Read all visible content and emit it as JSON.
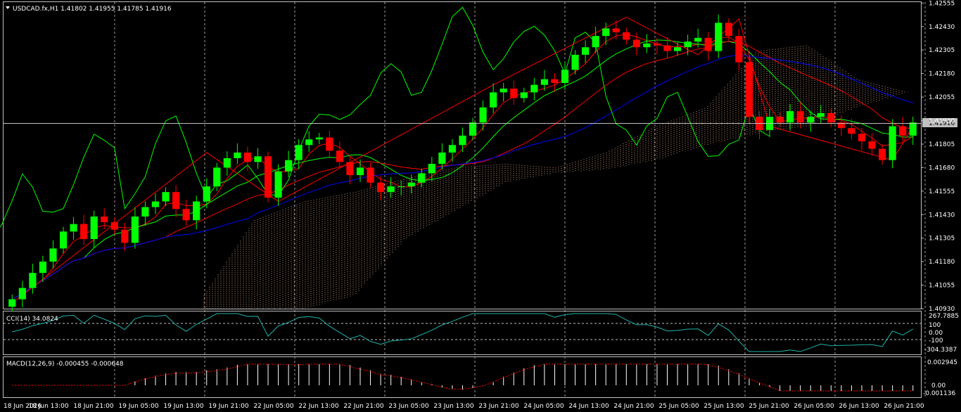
{
  "header": {
    "symbol_line": "USDCAD.fx,H1  1.41802 1.41955 1.41785 1.41916"
  },
  "price_axis": {
    "labels": [
      "1.42555",
      "1.42430",
      "1.42305",
      "1.42180",
      "1.42055",
      "1.41930",
      "1.41805",
      "1.41680",
      "1.41555",
      "1.41430",
      "1.41305",
      "1.41180",
      "1.41055",
      "1.40930"
    ],
    "current_price": "1.41916"
  },
  "time_axis": {
    "labels": [
      "18 Jun 2026",
      "18 Jun 13:00",
      "18 Jun 21:00",
      "19 Jun 05:00",
      "19 Jun 13:00",
      "19 Jun 21:00",
      "22 Jun 05:00",
      "22 Jun 13:00",
      "22 Jun 21:00",
      "23 Jun 05:00",
      "23 Jun 13:00",
      "23 Jun 21:00",
      "24 Jun 05:00",
      "24 Jun 13:00",
      "24 Jun 21:00",
      "25 Jun 05:00",
      "25 Jun 13:00",
      "25 Jun 21:00",
      "26 Jun 05:00",
      "26 Jun 13:00",
      "26 Jun 21:00"
    ]
  },
  "cci_panel": {
    "title": "CCI(14) 34.0824",
    "levels": [
      "267.7885",
      "100",
      "0.00",
      "-100",
      "-304.3387"
    ]
  },
  "macd_panel": {
    "title": "MACD(12,26,9) -0.000455 -0.000648",
    "levels": [
      "0.002945",
      "0.00",
      "-0.001136"
    ]
  },
  "colors": {
    "background": "#000000",
    "bull": "#00ff00",
    "bear": "#ff0000",
    "grid": "#c0c0c0",
    "kumo": "#ffc0a0",
    "slow_ma": "#0000ff",
    "fast_ma": "#ff0000",
    "chikou": "#00ff00"
  },
  "chart_data": {
    "type": "candlestick",
    "symbol": "USDCAD.fx",
    "timeframe": "H1",
    "ylim": [
      1.4093,
      1.4256
    ],
    "last": {
      "open": 1.41802,
      "high": 1.41955,
      "low": 1.41785,
      "close": 1.41916
    },
    "close_path": [
      1.4098,
      1.4104,
      1.4112,
      1.4118,
      1.4125,
      1.4134,
      1.4138,
      1.413,
      1.4142,
      1.4139,
      1.4135,
      1.4128,
      1.4142,
      1.4147,
      1.415,
      1.4155,
      1.4146,
      1.414,
      1.415,
      1.4158,
      1.4168,
      1.4173,
      1.4176,
      1.4171,
      1.4174,
      1.4152,
      1.4166,
      1.4172,
      1.418,
      1.4183,
      1.4184,
      1.4177,
      1.4171,
      1.4164,
      1.4168,
      1.416,
      1.4155,
      1.4158,
      1.4158,
      1.416,
      1.4165,
      1.417,
      1.4176,
      1.418,
      1.4185,
      1.4192,
      1.42,
      1.4208,
      1.421,
      1.4205,
      1.4208,
      1.4212,
      1.4215,
      1.4213,
      1.422,
      1.4228,
      1.4232,
      1.4238,
      1.4242,
      1.424,
      1.4236,
      1.4232,
      1.4234,
      1.4233,
      1.423,
      1.4232,
      1.4235,
      1.4237,
      1.423,
      1.4245,
      1.4238,
      1.4224,
      1.4195,
      1.4188,
      1.4195,
      1.4192,
      1.4198,
      1.4192,
      1.4195,
      1.4197,
      1.4192,
      1.4189,
      1.4186,
      1.4182,
      1.4178,
      1.4172,
      1.419,
      1.4185,
      1.4192
    ],
    "ichimoku_cloud": {
      "top": [
        1.41,
        1.414,
        1.415,
        1.4155,
        1.4162,
        1.4168,
        1.417,
        1.4168,
        1.4176,
        1.419,
        1.42,
        1.423,
        1.4233,
        1.4215,
        1.4208
      ],
      "bottom": [
        1.4093,
        1.4093,
        1.4093,
        1.41,
        1.413,
        1.4145,
        1.416,
        1.4165,
        1.4167,
        1.4172,
        1.418,
        1.4186,
        1.419,
        1.42,
        1.4208
      ]
    },
    "cci": {
      "last": 34.0824,
      "max": 267.7885,
      "min": -304.3387,
      "levels": [
        100,
        0,
        -100
      ]
    },
    "macd": {
      "main": -0.000455,
      "signal": -0.000648,
      "max": 0.002945,
      "min": -0.001136
    }
  }
}
